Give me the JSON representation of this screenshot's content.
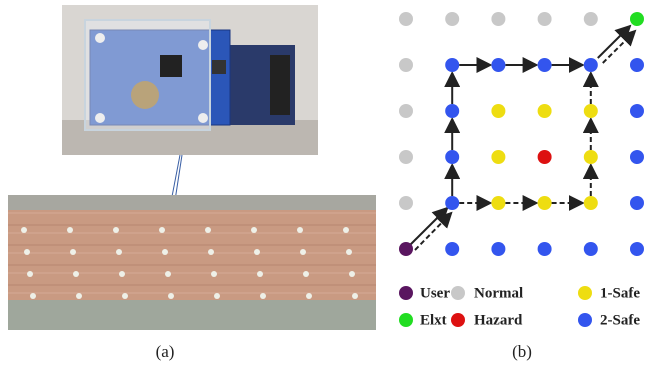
{
  "panels": {
    "a": {
      "caption": "(a)"
    },
    "b": {
      "caption": "(b)"
    }
  },
  "legend": {
    "items": [
      "User",
      "Normal",
      "1-Safe",
      "Elxt",
      "Hazard",
      "2-Safe"
    ]
  }
}
